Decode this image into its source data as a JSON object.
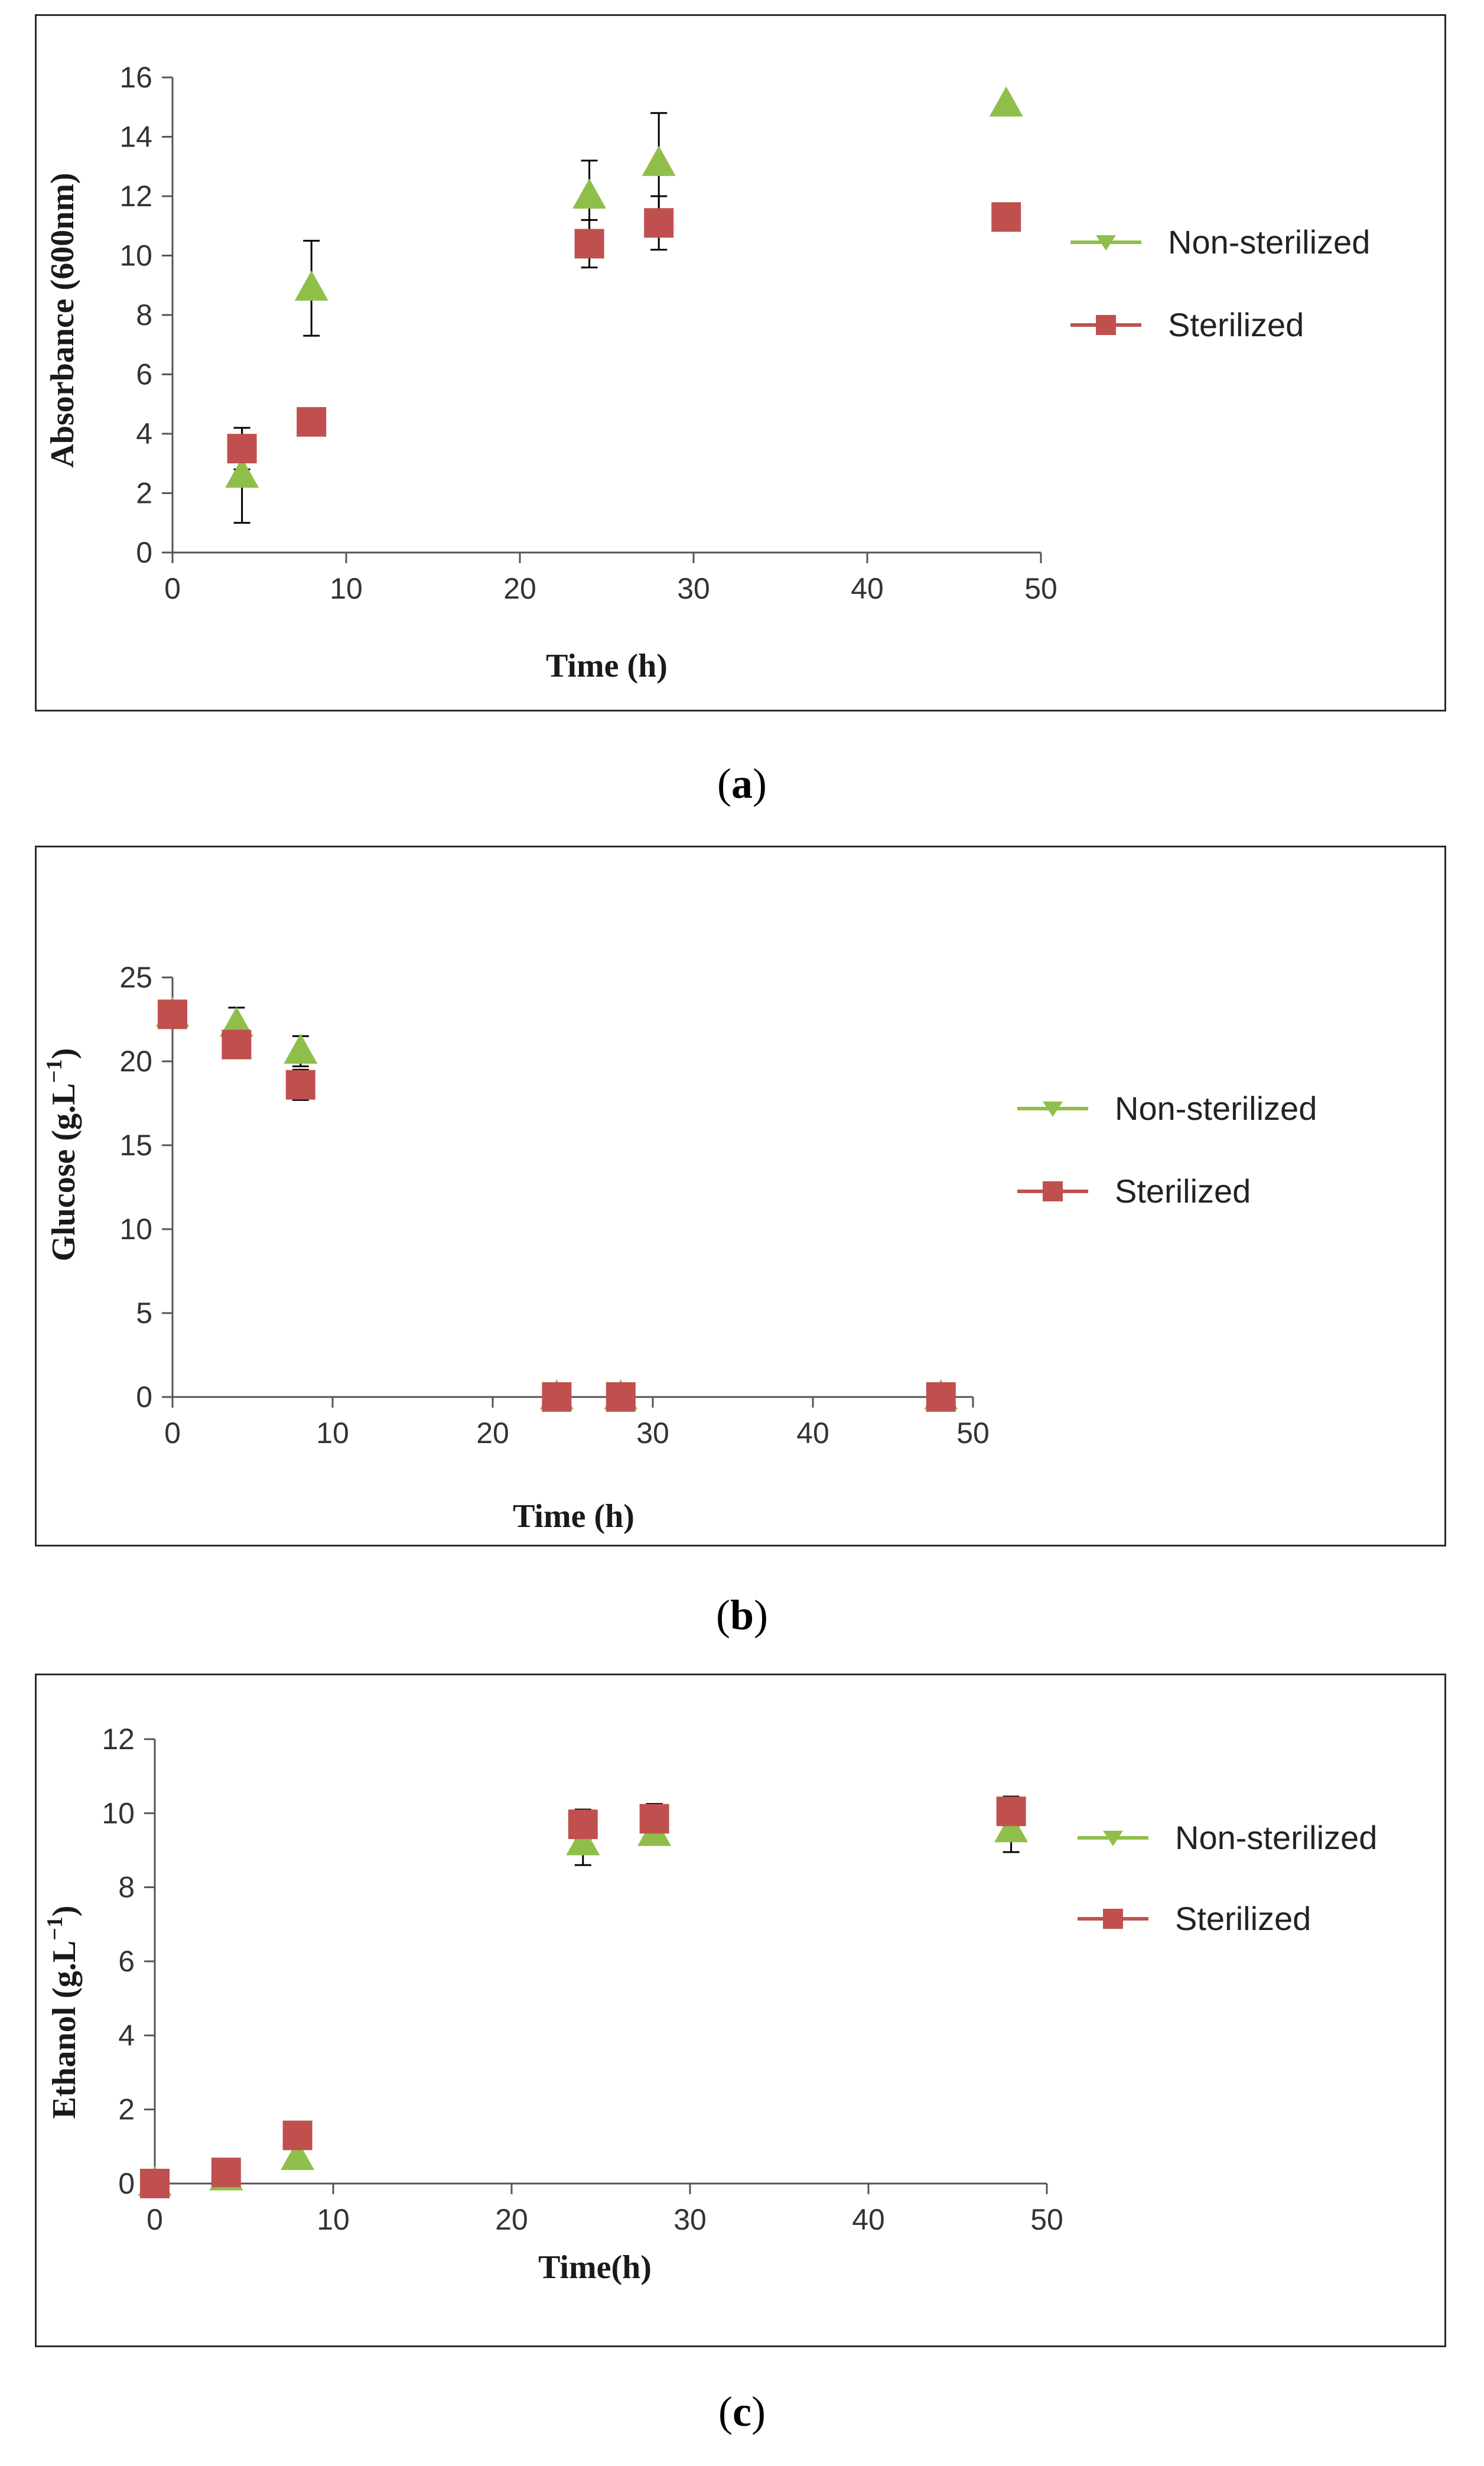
{
  "colors": {
    "non_sterilized": "#8fbf4a",
    "sterilized": "#c0504d",
    "axis": "#555555",
    "errorbar": "#000000"
  },
  "chart_data": [
    {
      "type": "scatter",
      "panel_label": "a",
      "xlabel": "Time (h)",
      "ylabel": "Absorbance (600nm)",
      "xlim": [
        0,
        50
      ],
      "ylim": [
        0,
        16
      ],
      "xticks": [
        "0",
        "10",
        "20",
        "30",
        "40",
        "50"
      ],
      "yticks": [
        "0",
        "2",
        "4",
        "6",
        "8",
        "10",
        "12",
        "14",
        "16"
      ],
      "legend": [
        "Non-sterilized",
        "Sterilized"
      ],
      "series": [
        {
          "name": "Non-sterilized",
          "marker": "triangle",
          "points": [
            {
              "x": 4,
              "y": 2.6,
              "err": 1.6
            },
            {
              "x": 8,
              "y": 8.9,
              "err": 1.6
            },
            {
              "x": 24,
              "y": 12.0,
              "err": 1.2
            },
            {
              "x": 28,
              "y": 13.1,
              "err": 1.7
            },
            {
              "x": 48,
              "y": 15.1,
              "err": 0
            }
          ]
        },
        {
          "name": "Sterilized",
          "marker": "square",
          "points": [
            {
              "x": 4,
              "y": 3.5,
              "err": 0.7
            },
            {
              "x": 8,
              "y": 4.4,
              "err": 0
            },
            {
              "x": 24,
              "y": 10.4,
              "err": 0.8
            },
            {
              "x": 28,
              "y": 11.1,
              "err": 0.9
            },
            {
              "x": 48,
              "y": 11.3,
              "err": 0
            }
          ]
        }
      ]
    },
    {
      "type": "scatter",
      "panel_label": "b",
      "xlabel": "Time (h)",
      "ylabel": "Glucose (g.L",
      "ylabel_sup": "−1",
      "ylabel_end": ")",
      "xlim": [
        0,
        50
      ],
      "ylim": [
        0,
        25
      ],
      "xticks": [
        "0",
        "10",
        "20",
        "30",
        "40",
        "50"
      ],
      "yticks": [
        "0",
        "5",
        "10",
        "15",
        "20",
        "25"
      ],
      "legend": [
        "Non-sterilized",
        "Sterilized"
      ],
      "series": [
        {
          "name": "Non-sterilized",
          "marker": "triangle",
          "points": [
            {
              "x": 0,
              "y": 22.8,
              "err": 0.6
            },
            {
              "x": 4,
              "y": 22.2,
              "err": 1.0
            },
            {
              "x": 8,
              "y": 20.6,
              "err": 0.9
            },
            {
              "x": 24,
              "y": 0,
              "err": 0
            },
            {
              "x": 28,
              "y": 0,
              "err": 0
            },
            {
              "x": 48,
              "y": 0,
              "err": 0
            }
          ]
        },
        {
          "name": "Sterilized",
          "marker": "square",
          "points": [
            {
              "x": 0,
              "y": 22.8,
              "err": 0.5
            },
            {
              "x": 4,
              "y": 21.0,
              "err": 0.8
            },
            {
              "x": 8,
              "y": 18.6,
              "err": 0.9
            },
            {
              "x": 24,
              "y": 0,
              "err": 0
            },
            {
              "x": 28,
              "y": 0,
              "err": 0
            },
            {
              "x": 48,
              "y": 0,
              "err": 0
            }
          ]
        }
      ]
    },
    {
      "type": "scatter",
      "panel_label": "c",
      "xlabel": "Time(h)",
      "ylabel": "Ethanol (g.L",
      "ylabel_sup": "−1",
      "ylabel_end": ")",
      "xlim": [
        0,
        50
      ],
      "ylim": [
        0,
        12
      ],
      "xticks": [
        "0",
        "10",
        "20",
        "30",
        "40",
        "50"
      ],
      "yticks": [
        "0",
        "2",
        "4",
        "6",
        "8",
        "10",
        "12"
      ],
      "legend": [
        "Non-sterilized",
        "Sterilized"
      ],
      "series": [
        {
          "name": "Non-sterilized",
          "marker": "triangle",
          "points": [
            {
              "x": 0,
              "y": 0.0,
              "err": 0
            },
            {
              "x": 4,
              "y": 0.15,
              "err": 0
            },
            {
              "x": 8,
              "y": 0.7,
              "err": 0
            },
            {
              "x": 24,
              "y": 9.2,
              "err": 0.6
            },
            {
              "x": 28,
              "y": 9.45,
              "err": 0.3
            },
            {
              "x": 48,
              "y": 9.55,
              "err": 0.6
            }
          ]
        },
        {
          "name": "Sterilized",
          "marker": "square",
          "points": [
            {
              "x": 0,
              "y": 0.0,
              "err": 0
            },
            {
              "x": 4,
              "y": 0.3,
              "err": 0
            },
            {
              "x": 8,
              "y": 1.3,
              "err": 0
            },
            {
              "x": 24,
              "y": 9.7,
              "err": 0.4
            },
            {
              "x": 28,
              "y": 9.85,
              "err": 0.4
            },
            {
              "x": 48,
              "y": 10.05,
              "err": 0.4
            }
          ]
        }
      ]
    }
  ],
  "captions": [
    {
      "open": "(",
      "label": "a",
      "close": ")"
    },
    {
      "open": "(",
      "label": "b",
      "close": ")"
    },
    {
      "open": "(",
      "label": "c",
      "close": ")"
    }
  ]
}
